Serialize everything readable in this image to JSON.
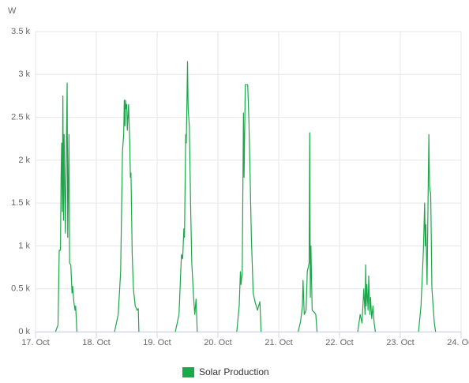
{
  "chart_data": {
    "type": "line",
    "y_label": "W",
    "x": [
      17.33,
      17.37,
      17.39,
      17.41,
      17.42,
      17.43,
      17.44,
      17.45,
      17.46,
      17.47,
      17.49,
      17.52,
      17.53,
      17.55,
      17.56,
      17.58,
      17.6,
      17.61,
      17.63,
      17.65,
      17.66,
      17.68,
      18.0,
      18.3,
      18.36,
      18.4,
      18.43,
      18.45,
      18.46,
      18.47,
      18.48,
      18.49,
      18.5,
      18.51,
      18.53,
      18.55,
      18.56,
      18.57,
      18.59,
      18.61,
      18.64,
      18.67,
      18.69,
      18.7,
      19.0,
      19.3,
      19.36,
      19.4,
      19.42,
      19.44,
      19.45,
      19.47,
      19.48,
      19.5,
      19.51,
      19.53,
      19.55,
      19.57,
      19.6,
      19.62,
      19.64,
      19.66,
      20.0,
      20.31,
      20.35,
      20.37,
      20.38,
      20.4,
      20.42,
      20.43,
      20.45,
      20.49,
      20.51,
      20.53,
      20.55,
      20.58,
      20.61,
      20.65,
      20.69,
      20.71,
      21.0,
      21.32,
      21.36,
      21.39,
      21.4,
      21.42,
      21.45,
      21.47,
      21.5,
      21.51,
      21.52,
      21.53,
      21.55,
      21.58,
      21.61,
      21.63,
      22.0,
      22.3,
      22.34,
      22.37,
      22.4,
      22.42,
      22.43,
      22.44,
      22.45,
      22.47,
      22.48,
      22.5,
      22.51,
      22.53,
      22.55,
      22.57,
      22.59,
      23.0,
      23.3,
      23.34,
      23.38,
      23.4,
      23.41,
      23.42,
      23.44,
      23.46,
      23.47,
      23.48,
      23.5,
      23.52,
      23.54,
      23.56,
      23.58
    ],
    "series": [
      {
        "name": "Solar Production",
        "color": "#1ea64b",
        "values": [
          0,
          80,
          950,
          950,
          1800,
          2200,
          1400,
          2750,
          1300,
          2300,
          1150,
          2900,
          1100,
          2300,
          800,
          780,
          450,
          530,
          350,
          250,
          300,
          0,
          null,
          0,
          200,
          700,
          2100,
          2300,
          2700,
          2400,
          2700,
          2600,
          2650,
          2350,
          2650,
          2200,
          1800,
          1850,
          900,
          500,
          300,
          250,
          270,
          0,
          null,
          0,
          200,
          900,
          850,
          1200,
          1100,
          2300,
          2200,
          3150,
          2600,
          2400,
          1500,
          800,
          400,
          200,
          380,
          0,
          null,
          0,
          300,
          700,
          550,
          700,
          2550,
          1800,
          2880,
          2880,
          2450,
          1800,
          1100,
          450,
          350,
          250,
          350,
          0,
          null,
          0,
          120,
          300,
          600,
          200,
          250,
          700,
          800,
          2320,
          400,
          1000,
          250,
          230,
          200,
          0,
          null,
          0,
          200,
          100,
          500,
          200,
          780,
          300,
          550,
          250,
          650,
          200,
          400,
          150,
          300,
          100,
          0,
          null,
          0,
          300,
          950,
          1500,
          1000,
          1250,
          550,
          1750,
          2300,
          1700,
          1600,
          500,
          300,
          100,
          0
        ]
      }
    ],
    "xlim": [
      17,
      24
    ],
    "xticks": [
      {
        "value": 17,
        "label": "17. Oct"
      },
      {
        "value": 18,
        "label": "18. Oct"
      },
      {
        "value": 19,
        "label": "19. Oct"
      },
      {
        "value": 20,
        "label": "20. Oct"
      },
      {
        "value": 21,
        "label": "21. Oct"
      },
      {
        "value": 22,
        "label": "22. Oct"
      },
      {
        "value": 23,
        "label": "23. Oct"
      },
      {
        "value": 24,
        "label": "24. Oct"
      }
    ],
    "ylim": [
      0,
      3500
    ],
    "yticks": [
      {
        "value": 0,
        "label": "0 k"
      },
      {
        "value": 500,
        "label": "0.5 k"
      },
      {
        "value": 1000,
        "label": "1 k"
      },
      {
        "value": 1500,
        "label": "1.5 k"
      },
      {
        "value": 2000,
        "label": "2 k"
      },
      {
        "value": 2500,
        "label": "2.5 k"
      },
      {
        "value": 3000,
        "label": "3 k"
      },
      {
        "value": 3500,
        "label": "3.5 k"
      }
    ],
    "grid": true
  }
}
